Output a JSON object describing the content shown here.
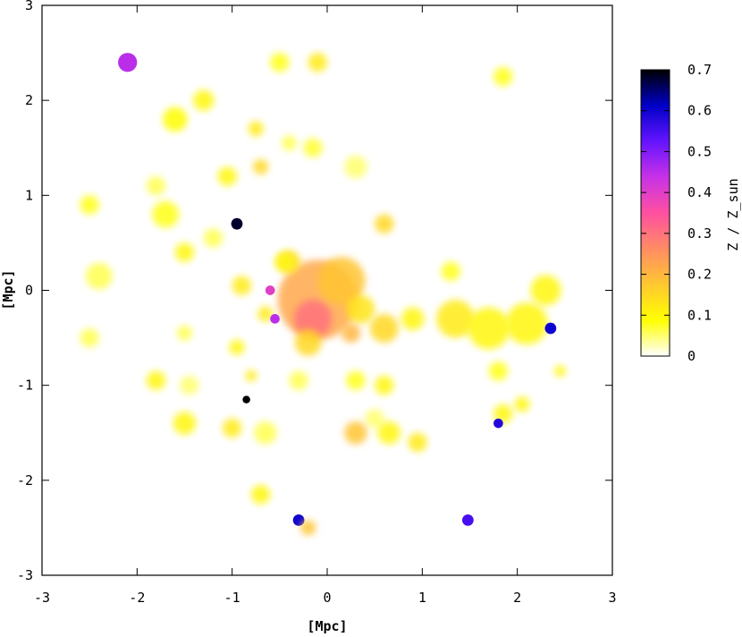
{
  "chart_data": {
    "type": "heatmap",
    "title": "",
    "xlabel": "[Mpc]",
    "ylabel": "[Mpc]",
    "xlim": [
      -3,
      3
    ],
    "ylim": [
      -3,
      3
    ],
    "x_ticks": [
      "-3",
      "-2",
      "-1",
      "0",
      "1",
      "2",
      "3"
    ],
    "y_ticks": [
      "-3",
      "-2",
      "-1",
      "0",
      "1",
      "2",
      "3"
    ],
    "colorbar": {
      "label": "Z / Z_sun",
      "range": [
        0,
        0.7
      ],
      "ticks": [
        "0",
        "0.1",
        "0.2",
        "0.3",
        "0.4",
        "0.5",
        "0.6",
        "0.7"
      ],
      "colormap_stops": [
        "#ffffff",
        "#ffff00",
        "#ffc830",
        "#ff8c64",
        "#ff50a0",
        "#c832e6",
        "#6414ff",
        "#0000c8",
        "#000000"
      ]
    },
    "grid": false,
    "blobs": [
      {
        "x": -0.1,
        "y": -0.1,
        "r": 0.42,
        "z": 0.22
      },
      {
        "x": -0.15,
        "y": -0.3,
        "r": 0.2,
        "z": 0.3
      },
      {
        "x": 0.15,
        "y": 0.1,
        "r": 0.25,
        "z": 0.18
      },
      {
        "x": -0.4,
        "y": 0.3,
        "r": 0.12,
        "z": 0.14
      },
      {
        "x": 0.35,
        "y": -0.2,
        "r": 0.15,
        "z": 0.13
      },
      {
        "x": -0.2,
        "y": -0.55,
        "r": 0.14,
        "z": 0.15
      },
      {
        "x": 0.25,
        "y": -0.45,
        "r": 0.1,
        "z": 0.2
      },
      {
        "x": -2.1,
        "y": 2.4,
        "r": 0.1,
        "z": 0.45
      },
      {
        "x": -1.6,
        "y": 1.8,
        "r": 0.13,
        "z": 0.09
      },
      {
        "x": -1.3,
        "y": 2.0,
        "r": 0.11,
        "z": 0.1
      },
      {
        "x": -0.5,
        "y": 2.4,
        "r": 0.1,
        "z": 0.08
      },
      {
        "x": -0.1,
        "y": 2.4,
        "r": 0.1,
        "z": 0.12
      },
      {
        "x": 1.85,
        "y": 2.25,
        "r": 0.1,
        "z": 0.08
      },
      {
        "x": -0.75,
        "y": 1.7,
        "r": 0.08,
        "z": 0.12
      },
      {
        "x": -0.7,
        "y": 1.3,
        "r": 0.08,
        "z": 0.15
      },
      {
        "x": -0.4,
        "y": 1.55,
        "r": 0.08,
        "z": 0.06
      },
      {
        "x": -0.15,
        "y": 1.5,
        "r": 0.1,
        "z": 0.07
      },
      {
        "x": 0.3,
        "y": 1.3,
        "r": 0.12,
        "z": 0.05
      },
      {
        "x": -1.05,
        "y": 1.2,
        "r": 0.1,
        "z": 0.1
      },
      {
        "x": -1.8,
        "y": 1.1,
        "r": 0.1,
        "z": 0.06
      },
      {
        "x": -2.5,
        "y": 0.9,
        "r": 0.1,
        "z": 0.08
      },
      {
        "x": -1.7,
        "y": 0.8,
        "r": 0.14,
        "z": 0.08
      },
      {
        "x": -0.95,
        "y": 0.7,
        "r": 0.06,
        "z": 0.68
      },
      {
        "x": -1.2,
        "y": 0.55,
        "r": 0.1,
        "z": 0.06
      },
      {
        "x": -1.5,
        "y": 0.4,
        "r": 0.1,
        "z": 0.1
      },
      {
        "x": -0.45,
        "y": 0.3,
        "r": 0.1,
        "z": 0.1
      },
      {
        "x": 0.6,
        "y": 0.7,
        "r": 0.1,
        "z": 0.15
      },
      {
        "x": -2.4,
        "y": 0.15,
        "r": 0.14,
        "z": 0.06
      },
      {
        "x": -0.9,
        "y": 0.05,
        "r": 0.1,
        "z": 0.12
      },
      {
        "x": -0.65,
        "y": -0.25,
        "r": 0.08,
        "z": 0.12
      },
      {
        "x": -0.55,
        "y": -0.3,
        "r": 0.05,
        "z": 0.45
      },
      {
        "x": -0.6,
        "y": 0.0,
        "r": 0.05,
        "z": 0.4
      },
      {
        "x": -2.5,
        "y": -0.5,
        "r": 0.1,
        "z": 0.06
      },
      {
        "x": -1.5,
        "y": -0.45,
        "r": 0.08,
        "z": 0.06
      },
      {
        "x": -0.95,
        "y": -0.6,
        "r": 0.08,
        "z": 0.1
      },
      {
        "x": 0.6,
        "y": -0.4,
        "r": 0.15,
        "z": 0.15
      },
      {
        "x": 0.9,
        "y": -0.3,
        "r": 0.12,
        "z": 0.1
      },
      {
        "x": 1.3,
        "y": 0.2,
        "r": 0.1,
        "z": 0.08
      },
      {
        "x": 1.35,
        "y": -0.3,
        "r": 0.2,
        "z": 0.12
      },
      {
        "x": 1.7,
        "y": -0.4,
        "r": 0.22,
        "z": 0.1
      },
      {
        "x": 2.1,
        "y": -0.35,
        "r": 0.22,
        "z": 0.1
      },
      {
        "x": 2.3,
        "y": 0.0,
        "r": 0.16,
        "z": 0.1
      },
      {
        "x": 2.35,
        "y": -0.4,
        "r": 0.06,
        "z": 0.6
      },
      {
        "x": 1.8,
        "y": -0.85,
        "r": 0.1,
        "z": 0.08
      },
      {
        "x": 2.45,
        "y": -0.85,
        "r": 0.06,
        "z": 0.1
      },
      {
        "x": 0.6,
        "y": -1.0,
        "r": 0.1,
        "z": 0.1
      },
      {
        "x": 0.3,
        "y": -0.95,
        "r": 0.1,
        "z": 0.08
      },
      {
        "x": 0.5,
        "y": -1.35,
        "r": 0.1,
        "z": 0.05
      },
      {
        "x": 0.3,
        "y": -1.5,
        "r": 0.12,
        "z": 0.18
      },
      {
        "x": 0.65,
        "y": -1.5,
        "r": 0.12,
        "z": 0.1
      },
      {
        "x": 0.95,
        "y": -1.6,
        "r": 0.1,
        "z": 0.12
      },
      {
        "x": -0.3,
        "y": -0.95,
        "r": 0.1,
        "z": 0.06
      },
      {
        "x": -0.8,
        "y": -0.9,
        "r": 0.06,
        "z": 0.12
      },
      {
        "x": -1.8,
        "y": -0.95,
        "r": 0.1,
        "z": 0.1
      },
      {
        "x": -1.45,
        "y": -1.0,
        "r": 0.1,
        "z": 0.05
      },
      {
        "x": -0.85,
        "y": -1.15,
        "r": 0.04,
        "z": 0.7
      },
      {
        "x": -1.5,
        "y": -1.4,
        "r": 0.12,
        "z": 0.1
      },
      {
        "x": -1.0,
        "y": -1.45,
        "r": 0.1,
        "z": 0.12
      },
      {
        "x": -0.65,
        "y": -1.5,
        "r": 0.12,
        "z": 0.06
      },
      {
        "x": 1.85,
        "y": -1.3,
        "r": 0.1,
        "z": 0.1
      },
      {
        "x": 2.05,
        "y": -1.2,
        "r": 0.08,
        "z": 0.1
      },
      {
        "x": 1.8,
        "y": -1.4,
        "r": 0.05,
        "z": 0.58
      },
      {
        "x": -0.7,
        "y": -2.15,
        "r": 0.1,
        "z": 0.1
      },
      {
        "x": -0.3,
        "y": -2.42,
        "r": 0.06,
        "z": 0.6
      },
      {
        "x": -0.2,
        "y": -2.5,
        "r": 0.08,
        "z": 0.18
      },
      {
        "x": 1.48,
        "y": -2.42,
        "r": 0.06,
        "z": 0.55
      }
    ]
  }
}
